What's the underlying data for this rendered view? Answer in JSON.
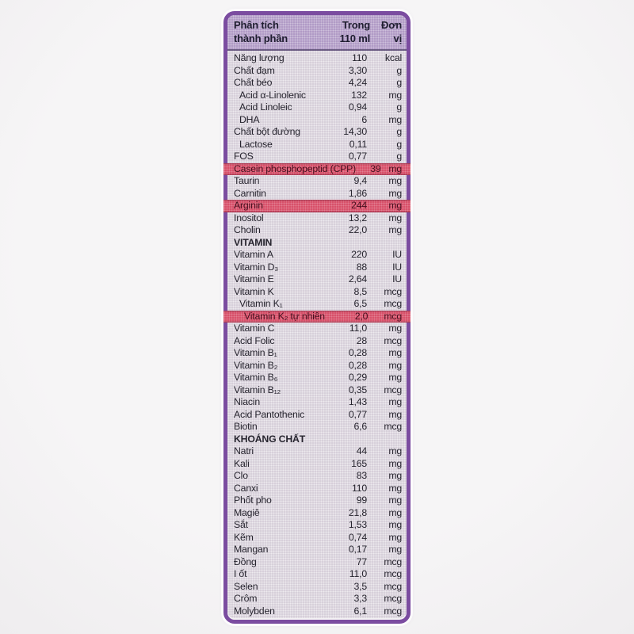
{
  "colors": {
    "border_purple": "#7b4ca0",
    "header_band_bg": "#b19bc6",
    "body_bg": "#d7d0da",
    "highlight_row_bg": "#d8516a",
    "text": "#26242e"
  },
  "table": {
    "header": {
      "analysis": "Phân tích\nthành phần",
      "amount": "Trong\n110 ml",
      "unit": "Đơn\nvị"
    },
    "rows": [
      {
        "name": "Năng lượng",
        "value": "110",
        "unit": "kcal"
      },
      {
        "name": "Chất đạm",
        "value": "3,30",
        "unit": "g"
      },
      {
        "name": "Chất béo",
        "value": "4,24",
        "unit": "g"
      },
      {
        "name": "Acid α-Linolenic",
        "value": "132",
        "unit": "mg",
        "indent": 1
      },
      {
        "name": "Acid Linoleic",
        "value": "0,94",
        "unit": "g",
        "indent": 1
      },
      {
        "name": "DHA",
        "value": "6",
        "unit": "mg",
        "indent": 1
      },
      {
        "name": "Chất bột đường",
        "value": "14,30",
        "unit": "g"
      },
      {
        "name": "Lactose",
        "value": "0,11",
        "unit": "g",
        "indent": 1
      },
      {
        "name": "FOS",
        "value": "0,77",
        "unit": "g"
      },
      {
        "name": "Casein phosphopeptid (CPP)",
        "value": "39",
        "unit": "mg",
        "highlight": true
      },
      {
        "name": "Taurin",
        "value": "9,4",
        "unit": "mg"
      },
      {
        "name": "Carnitin",
        "value": "1,86",
        "unit": "mg"
      },
      {
        "name": "Arginin",
        "value": "244",
        "unit": "mg",
        "highlight": true
      },
      {
        "name": "Inositol",
        "value": "13,2",
        "unit": "mg"
      },
      {
        "name": "Cholin",
        "value": "22,0",
        "unit": "mg"
      },
      {
        "name": "VITAMIN",
        "value": "",
        "unit": "",
        "section": true
      },
      {
        "name": "Vitamin A",
        "value": "220",
        "unit": "IU"
      },
      {
        "name": "Vitamin D₃",
        "value": "88",
        "unit": "IU"
      },
      {
        "name": "Vitamin E",
        "value": "2,64",
        "unit": "IU"
      },
      {
        "name": "Vitamin K",
        "value": "8,5",
        "unit": "mcg"
      },
      {
        "name": "Vitamin K₁",
        "value": "6,5",
        "unit": "mcg",
        "indent": 1
      },
      {
        "name": "Vitamin K₂ tự nhiên",
        "value": "2,0",
        "unit": "mcg",
        "indent": 2,
        "highlight": true
      },
      {
        "name": "Vitamin C",
        "value": "11,0",
        "unit": "mg"
      },
      {
        "name": "Acid Folic",
        "value": "28",
        "unit": "mcg"
      },
      {
        "name": "Vitamin B₁",
        "value": "0,28",
        "unit": "mg"
      },
      {
        "name": "Vitamin B₂",
        "value": "0,28",
        "unit": "mg"
      },
      {
        "name": "Vitamin B₆",
        "value": "0,29",
        "unit": "mg"
      },
      {
        "name": "Vitamin B₁₂",
        "value": "0,35",
        "unit": "mcg"
      },
      {
        "name": "Niacin",
        "value": "1,43",
        "unit": "mg"
      },
      {
        "name": "Acid Pantothenic",
        "value": "0,77",
        "unit": "mg"
      },
      {
        "name": "Biotin",
        "value": "6,6",
        "unit": "mcg"
      },
      {
        "name": "KHOÁNG CHẤT",
        "value": "",
        "unit": "",
        "section": true
      },
      {
        "name": "Natri",
        "value": "44",
        "unit": "mg"
      },
      {
        "name": "Kali",
        "value": "165",
        "unit": "mg"
      },
      {
        "name": "Clo",
        "value": "83",
        "unit": "mg"
      },
      {
        "name": "Canxi",
        "value": "110",
        "unit": "mg"
      },
      {
        "name": "Phốt pho",
        "value": "99",
        "unit": "mg"
      },
      {
        "name": "Magiê",
        "value": "21,8",
        "unit": "mg"
      },
      {
        "name": "Sắt",
        "value": "1,53",
        "unit": "mg"
      },
      {
        "name": "Kẽm",
        "value": "0,74",
        "unit": "mg"
      },
      {
        "name": "Mangan",
        "value": "0,17",
        "unit": "mg"
      },
      {
        "name": "Đồng",
        "value": "77",
        "unit": "mcg"
      },
      {
        "name": "I ốt",
        "value": "11,0",
        "unit": "mcg"
      },
      {
        "name": "Selen",
        "value": "3,5",
        "unit": "mcg"
      },
      {
        "name": "Crôm",
        "value": "3,3",
        "unit": "mcg"
      },
      {
        "name": "Molybden",
        "value": "6,1",
        "unit": "mcg"
      }
    ]
  }
}
